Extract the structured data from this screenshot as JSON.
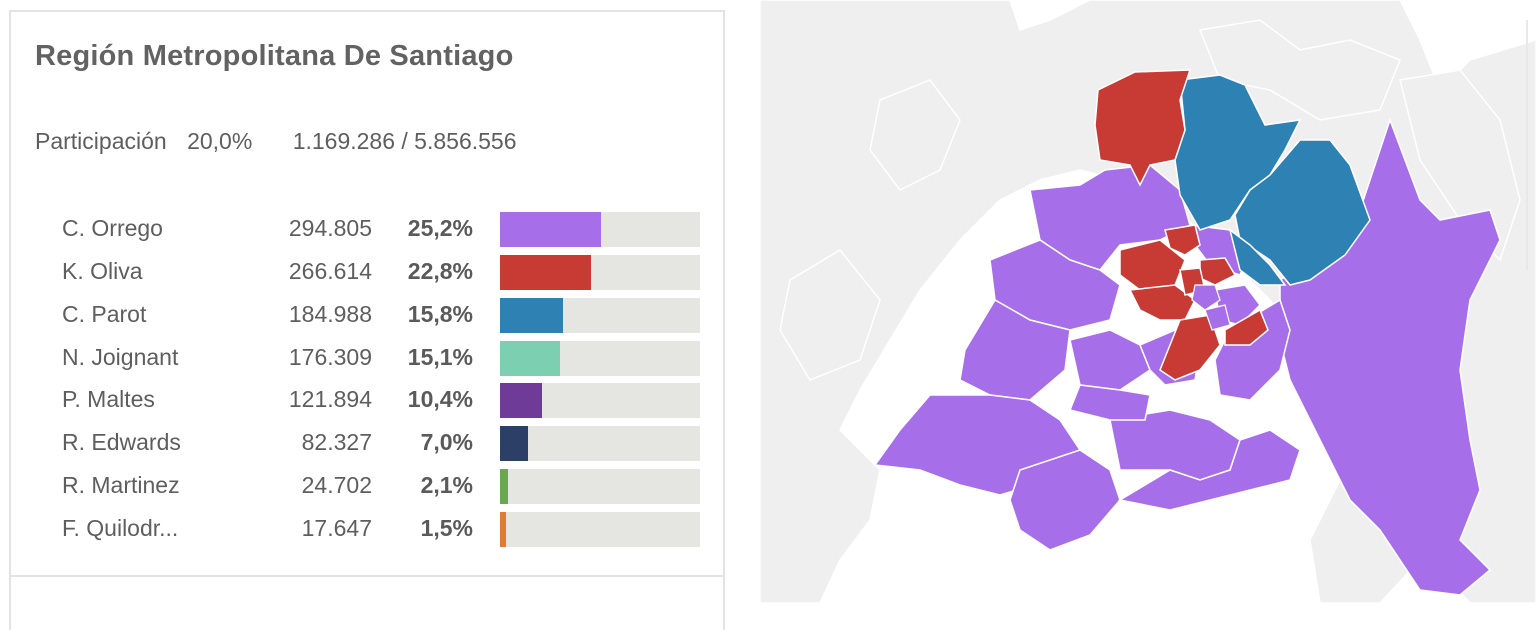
{
  "panel": {
    "title": "Región Metropolitana De Santiago",
    "participation": {
      "label": "Participación",
      "percent": "20,0%",
      "ratio": "1.169.286 / 5.856.556"
    },
    "candidates": [
      {
        "name": "C. Orrego",
        "votes": "294.805",
        "percent": "25,2%",
        "share": 25.2,
        "color": "#a66fe9"
      },
      {
        "name": "K. Oliva",
        "votes": "266.614",
        "percent": "22,8%",
        "share": 22.8,
        "color": "#c83a34"
      },
      {
        "name": "C. Parot",
        "votes": "184.988",
        "percent": "15,8%",
        "share": 15.8,
        "color": "#2e81b3"
      },
      {
        "name": "N. Joignant",
        "votes": "176.309",
        "percent": "15,1%",
        "share": 15.1,
        "color": "#7ccfb0"
      },
      {
        "name": "P. Maltes",
        "votes": "121.894",
        "percent": "10,4%",
        "share": 10.4,
        "color": "#6e3c98"
      },
      {
        "name": "R. Edwards",
        "votes": "82.327",
        "percent": "7,0%",
        "share": 7.0,
        "color": "#2c3f66"
      },
      {
        "name": "R. Martinez",
        "votes": "24.702",
        "percent": "2,1%",
        "share": 2.1,
        "color": "#6aa84f"
      },
      {
        "name": "F. Quilodr...",
        "votes": "17.647",
        "percent": "1,5%",
        "share": 1.5,
        "color": "#e07b39"
      }
    ]
  },
  "map": {
    "colors": {
      "background_region": "#efefef",
      "border": "#ffffff",
      "orrego": "#a66fe9",
      "oliva": "#c83a34",
      "parot": "#2e81b3"
    }
  }
}
